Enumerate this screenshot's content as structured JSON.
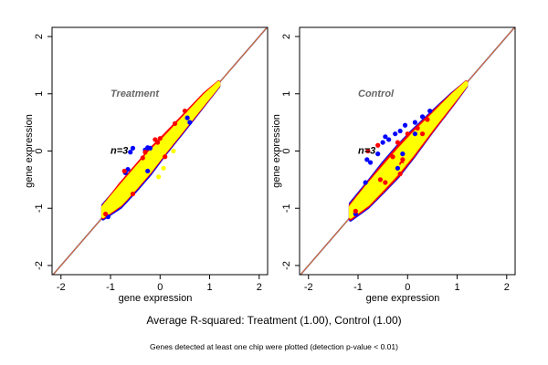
{
  "caption": "Average R-squared: Treatment (1.00), Control (1.00)",
  "footnote": "Genes detected at least one chip were plotted (detection p-value < 0.01)",
  "chart_data": [
    {
      "type": "scatter",
      "title": "Treatment",
      "annotation": "n=3",
      "xlabel": "gene expression",
      "ylabel": "gene expression",
      "xlim": [
        -2.18,
        2.17
      ],
      "ylim": [
        -2.16,
        2.16
      ],
      "xticks": [
        -2,
        -1,
        0,
        1,
        2
      ],
      "yticks": [
        -2,
        -1,
        0,
        1,
        2
      ],
      "grid": false,
      "reference_line": {
        "slope": 1,
        "intercept": 0,
        "color": "#e0701c"
      },
      "band": {
        "x": [
          -1.15,
          -0.8,
          -0.5,
          -0.2,
          0.1,
          0.5,
          0.9,
          1.18
        ],
        "blue": {
          "upper": [
            -0.95,
            -0.6,
            -0.3,
            0.0,
            0.25,
            0.6,
            0.98,
            1.2
          ],
          "lower": [
            -1.18,
            -0.98,
            -0.7,
            -0.4,
            -0.05,
            0.38,
            0.82,
            1.13
          ]
        },
        "red": {
          "upper": [
            -0.97,
            -0.58,
            -0.28,
            0.02,
            0.28,
            0.64,
            1.0,
            1.2
          ],
          "lower": [
            -1.16,
            -0.95,
            -0.67,
            -0.37,
            -0.03,
            0.4,
            0.83,
            1.14
          ]
        },
        "yellow": {
          "upper": [
            -0.98,
            -0.62,
            -0.32,
            -0.02,
            0.23,
            0.6,
            0.97,
            1.19
          ],
          "lower": [
            -1.14,
            -0.93,
            -0.65,
            -0.35,
            -0.01,
            0.42,
            0.85,
            1.15
          ]
        }
      },
      "series": [
        {
          "color": "#0000ff",
          "points": [
            [
              -0.55,
              0.05
            ],
            [
              -0.6,
              -0.02
            ],
            [
              -0.3,
              0.02
            ],
            [
              -0.25,
              0.06
            ],
            [
              -0.7,
              -0.38
            ],
            [
              -0.65,
              -0.32
            ],
            [
              -0.25,
              -0.35
            ],
            [
              0.6,
              0.5
            ],
            [
              0.55,
              0.58
            ],
            [
              -1.05,
              -1.15
            ],
            [
              -0.2,
              0.05
            ]
          ]
        },
        {
          "color": "#ff0000",
          "points": [
            [
              -0.05,
              0.15
            ],
            [
              -0.1,
              0.2
            ],
            [
              0.3,
              0.48
            ],
            [
              0.5,
              0.7
            ],
            [
              -0.35,
              -0.12
            ],
            [
              -0.72,
              -0.35
            ],
            [
              -1.1,
              -1.1
            ],
            [
              0.1,
              -0.1
            ],
            [
              -0.55,
              -0.75
            ],
            [
              0.0,
              0.22
            ],
            [
              -0.3,
              -0.02
            ]
          ]
        },
        {
          "color": "#ffff00",
          "points": [
            [
              0.27,
              0.0
            ],
            [
              0.07,
              -0.3
            ],
            [
              -0.03,
              -0.45
            ]
          ]
        }
      ]
    },
    {
      "type": "scatter",
      "title": "Control",
      "annotation": "n=3",
      "xlabel": "gene expression",
      "ylabel": "gene expression",
      "xlim": [
        -2.18,
        2.17
      ],
      "ylim": [
        -2.16,
        2.16
      ],
      "xticks": [
        -2,
        -1,
        0,
        1,
        2
      ],
      "yticks": [
        -2,
        -1,
        0,
        1,
        2
      ],
      "grid": false,
      "reference_line": {
        "slope": 1,
        "intercept": 0,
        "color": "#e0701c"
      },
      "band": {
        "x": [
          -1.15,
          -0.8,
          -0.5,
          -0.2,
          0.1,
          0.5,
          0.9,
          1.18
        ],
        "blue": {
          "upper": [
            -0.92,
            -0.55,
            -0.22,
            0.08,
            0.35,
            0.68,
            1.0,
            1.2
          ],
          "lower": [
            -1.2,
            -0.98,
            -0.72,
            -0.45,
            -0.12,
            0.35,
            0.8,
            1.13
          ]
        },
        "red": {
          "upper": [
            -0.95,
            -0.57,
            -0.25,
            0.06,
            0.33,
            0.66,
            0.99,
            1.2
          ],
          "lower": [
            -1.18,
            -0.96,
            -0.7,
            -0.43,
            -0.1,
            0.36,
            0.81,
            1.14
          ]
        },
        "yellow": {
          "upper": [
            -0.98,
            -0.6,
            -0.3,
            0.0,
            0.28,
            0.62,
            0.97,
            1.19
          ],
          "lower": [
            -1.15,
            -0.93,
            -0.66,
            -0.38,
            -0.06,
            0.4,
            0.84,
            1.15
          ]
        }
      },
      "series": [
        {
          "color": "#0000ff",
          "points": [
            [
              -0.45,
              0.25
            ],
            [
              -0.5,
              0.15
            ],
            [
              -0.38,
              0.2
            ],
            [
              -0.25,
              0.3
            ],
            [
              -0.15,
              0.35
            ],
            [
              -0.05,
              0.45
            ],
            [
              0.15,
              0.5
            ],
            [
              0.3,
              0.6
            ],
            [
              0.45,
              0.7
            ],
            [
              -0.82,
              -0.15
            ],
            [
              -0.75,
              -0.2
            ],
            [
              -0.6,
              -0.05
            ],
            [
              -0.85,
              -0.55
            ],
            [
              -0.1,
              -0.05
            ],
            [
              0.15,
              0.3
            ],
            [
              -0.2,
              -0.3
            ],
            [
              -1.05,
              -1.1
            ]
          ]
        },
        {
          "color": "#ff0000",
          "points": [
            [
              -0.8,
              0.0
            ],
            [
              -0.6,
              0.1
            ],
            [
              -0.3,
              -0.1
            ],
            [
              -0.2,
              0.15
            ],
            [
              -0.1,
              -0.15
            ],
            [
              0.0,
              0.3
            ],
            [
              0.3,
              0.3
            ],
            [
              0.4,
              0.55
            ],
            [
              -0.55,
              -0.5
            ],
            [
              -0.45,
              -0.55
            ],
            [
              -1.05,
              -1.05
            ],
            [
              -0.12,
              -0.22
            ],
            [
              0.2,
              0.4
            ],
            [
              -0.15,
              -0.4
            ]
          ]
        },
        {
          "color": "#ffff00",
          "points": [
            [
              -0.1,
              -0.25
            ],
            [
              0.0,
              -0.1
            ]
          ]
        }
      ]
    }
  ]
}
